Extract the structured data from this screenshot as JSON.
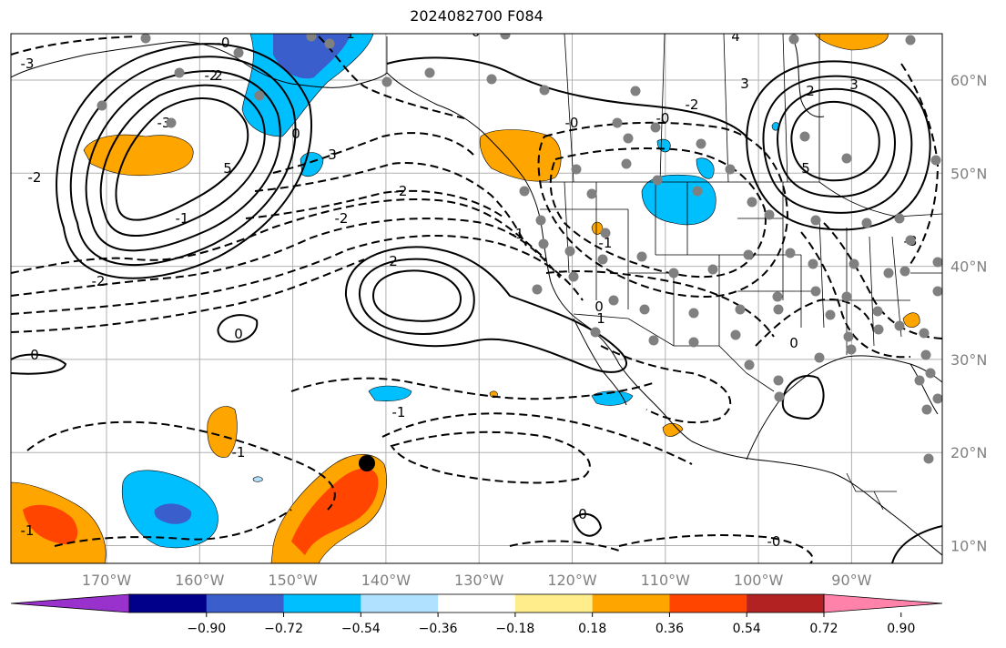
{
  "title": "2024082700 F084",
  "map": {
    "lon_labels": [
      {
        "lon": -170,
        "text": "170°W"
      },
      {
        "lon": -160,
        "text": "160°W"
      },
      {
        "lon": -150,
        "text": "150°W"
      },
      {
        "lon": -140,
        "text": "140°W"
      },
      {
        "lon": -130,
        "text": "130°W"
      },
      {
        "lon": -120,
        "text": "120°W"
      },
      {
        "lon": -110,
        "text": "110°W"
      },
      {
        "lon": -100,
        "text": "100°W"
      },
      {
        "lon": -90,
        "text": "90°W"
      }
    ],
    "lat_labels": [
      {
        "lat": 60,
        "text": "60°N"
      },
      {
        "lat": 50,
        "text": "50°N"
      },
      {
        "lat": 40,
        "text": "40°N"
      },
      {
        "lat": 30,
        "text": "30°N"
      },
      {
        "lat": 20,
        "text": "20°N"
      },
      {
        "lat": 10,
        "text": "10°N"
      }
    ],
    "contour_labels": [
      "-0",
      "-2",
      "-3",
      "-3",
      "-2",
      "3",
      "2",
      "5",
      "-1",
      "0",
      "-2",
      "-2",
      "-2",
      "3",
      "-2",
      "2",
      "-0",
      "0",
      "0",
      "-1",
      "0",
      "-1",
      "-1",
      "0",
      "-0",
      "-0",
      "1",
      "-0",
      "3",
      "5",
      "-1",
      "2",
      "0",
      "-3",
      "1",
      "4",
      "-1"
    ]
  },
  "colorbar": {
    "ticks": [
      "−0.90",
      "−0.72",
      "−0.54",
      "−0.36",
      "−0.18",
      "0.18",
      "0.36",
      "0.54",
      "0.72",
      "0.90"
    ],
    "colors": [
      "#9932cc",
      "#00008b",
      "#3a5fcd",
      "#00bfff",
      "#b0e2ff",
      "#ffffff",
      "#ffec8b",
      "#ffa500",
      "#ff4500",
      "#b22222",
      "#ff82ab"
    ]
  }
}
